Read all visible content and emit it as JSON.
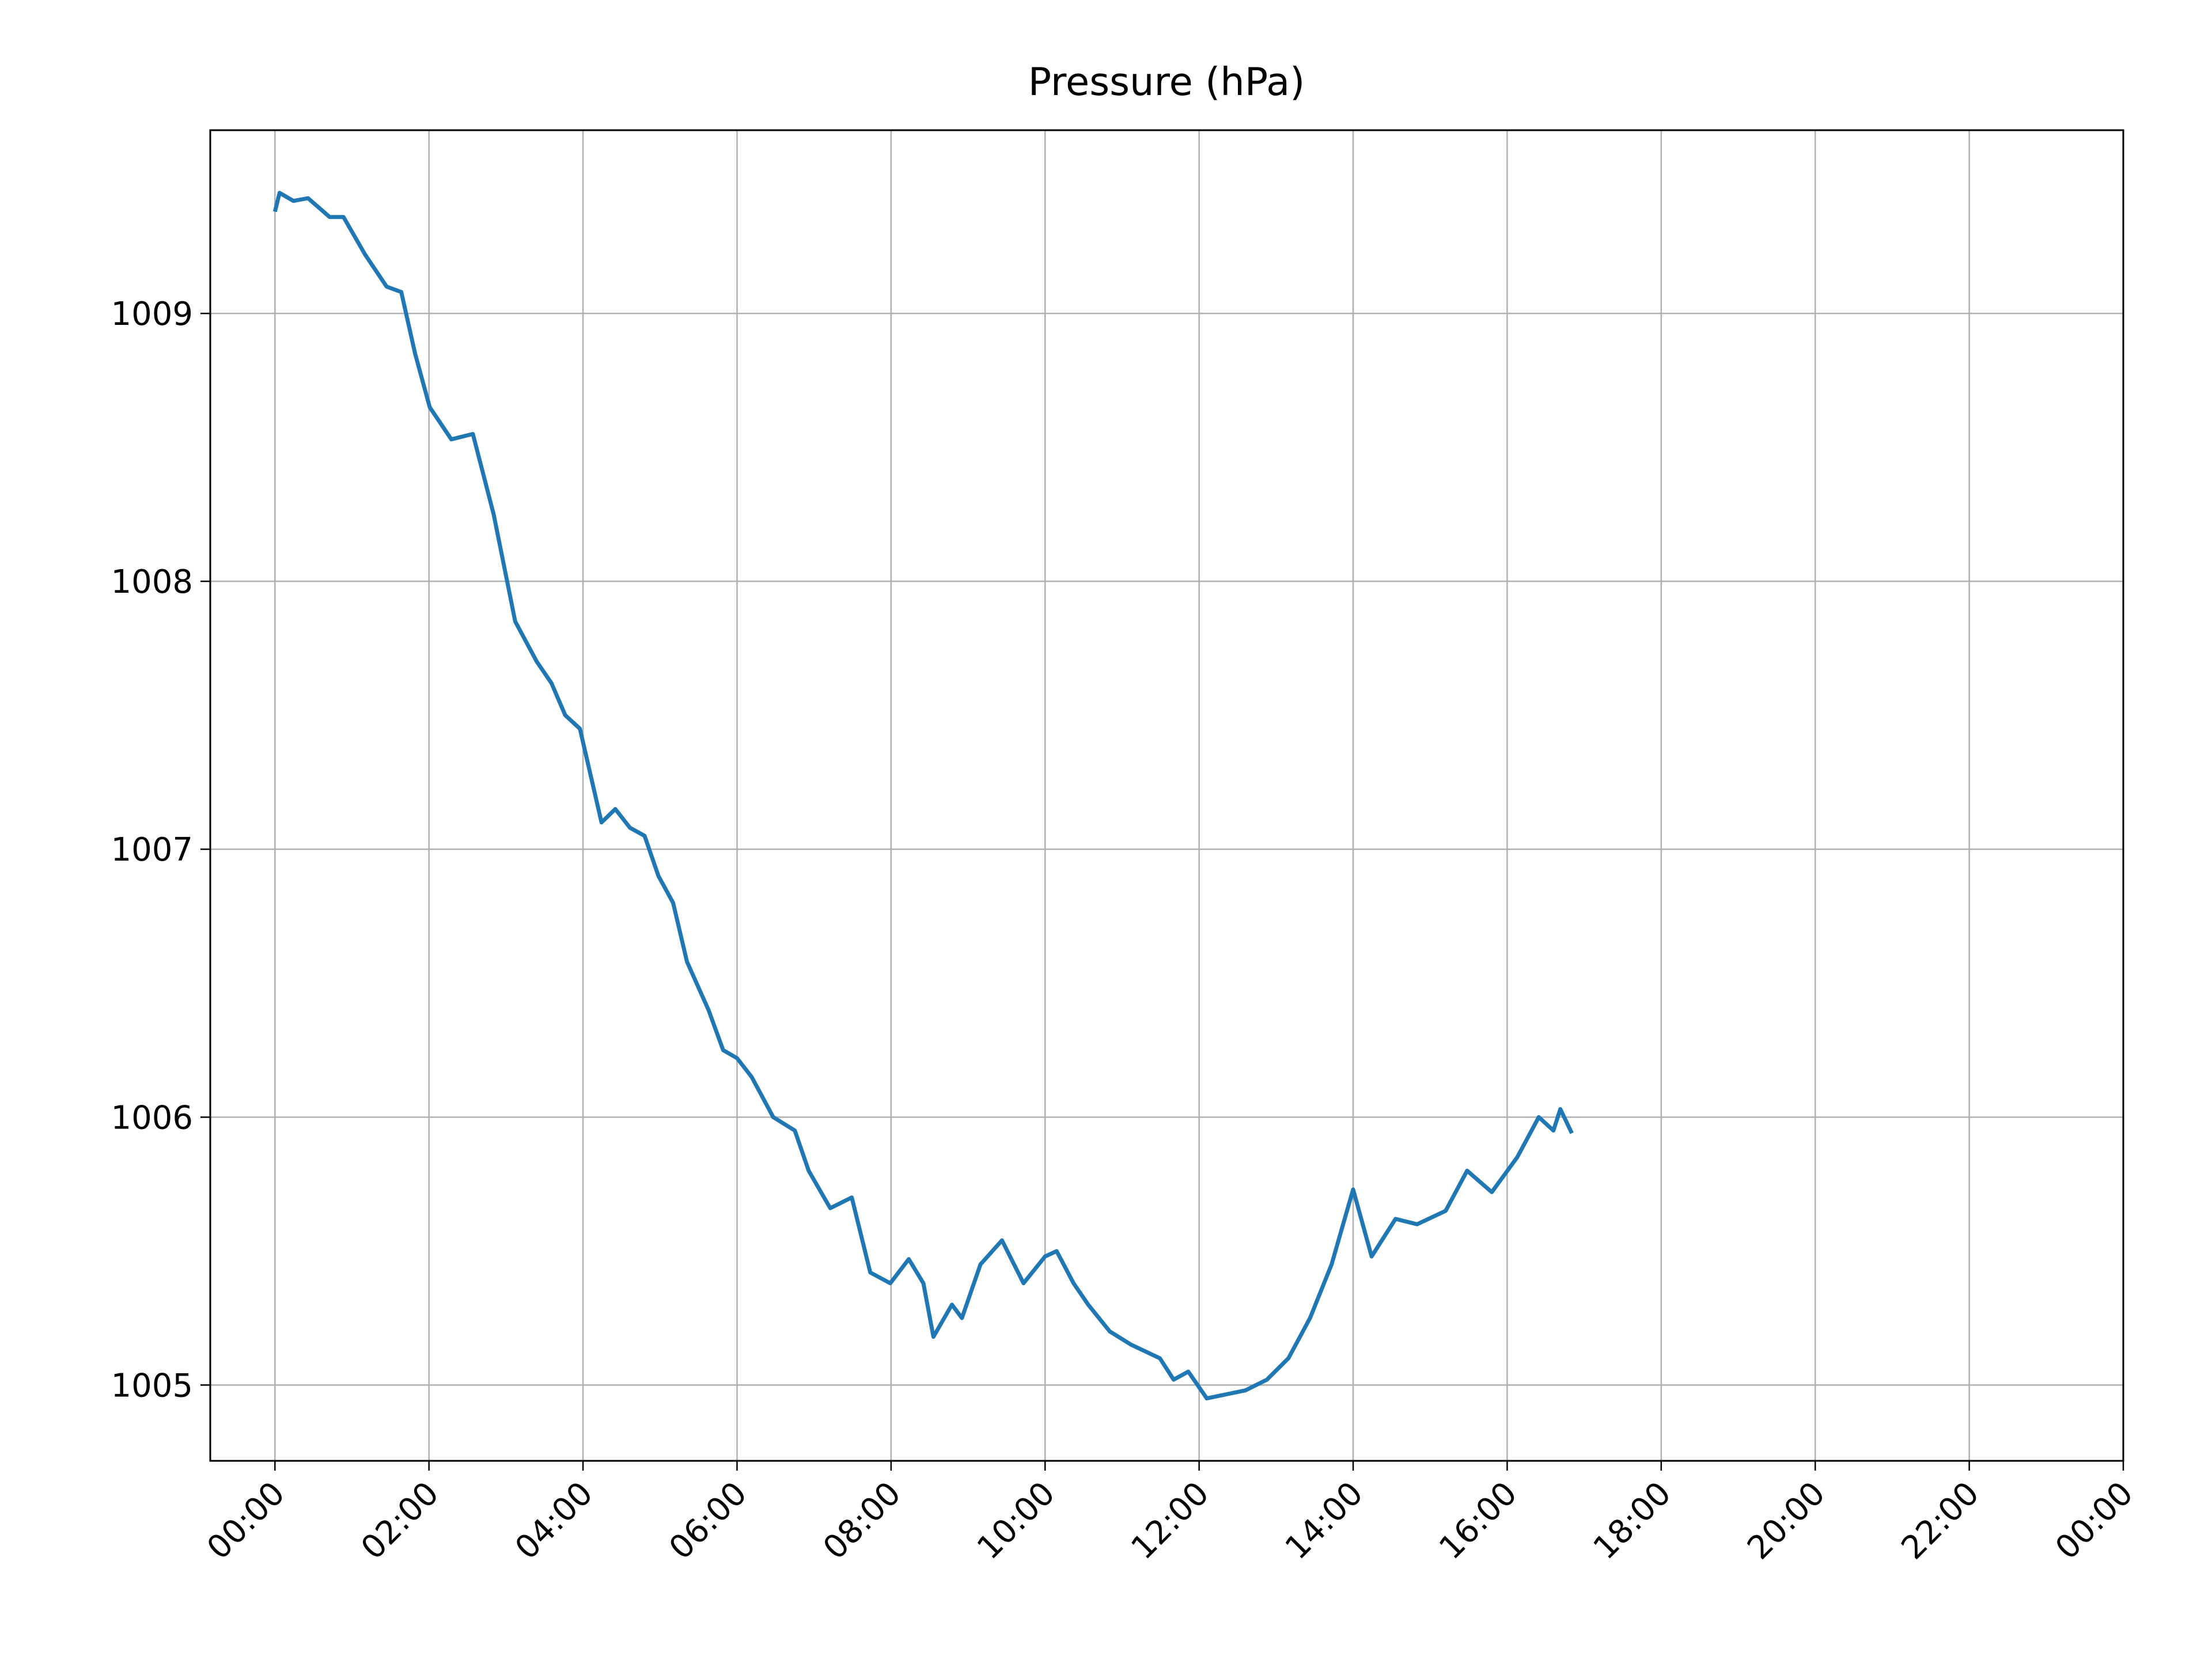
{
  "chart_data": {
    "type": "line",
    "title": "Pressure (hPa)",
    "x": [
      0,
      0.06,
      0.24,
      0.43,
      0.71,
      0.89,
      1.17,
      1.45,
      1.64,
      1.82,
      2.01,
      2.29,
      2.57,
      2.84,
      3.12,
      3.4,
      3.59,
      3.77,
      3.96,
      4.24,
      4.42,
      4.61,
      4.8,
      4.98,
      5.17,
      5.35,
      5.63,
      5.82,
      6.0,
      6.19,
      6.47,
      6.75,
      6.93,
      7.21,
      7.49,
      7.73,
      7.99,
      8.23,
      8.42,
      8.55,
      8.79,
      8.92,
      9.16,
      9.44,
      9.72,
      10.0,
      10.15,
      10.37,
      10.56,
      10.84,
      11.12,
      11.49,
      11.67,
      11.86,
      12.1,
      12.6,
      12.88,
      13.16,
      13.44,
      13.72,
      14.0,
      14.24,
      14.55,
      14.83,
      15.2,
      15.48,
      15.8,
      16.13,
      16.41,
      16.6,
      16.69,
      16.84
    ],
    "series": [
      {
        "name": "Pressure",
        "color": "#1f77b4",
        "values": [
          1009.38,
          1009.45,
          1009.42,
          1009.43,
          1009.36,
          1009.36,
          1009.22,
          1009.1,
          1009.08,
          1008.85,
          1008.65,
          1008.53,
          1008.55,
          1008.25,
          1007.85,
          1007.7,
          1007.62,
          1007.5,
          1007.45,
          1007.1,
          1007.15,
          1007.08,
          1007.05,
          1006.9,
          1006.8,
          1006.58,
          1006.4,
          1006.25,
          1006.22,
          1006.15,
          1006.0,
          1005.95,
          1005.8,
          1005.66,
          1005.7,
          1005.42,
          1005.38,
          1005.47,
          1005.38,
          1005.18,
          1005.3,
          1005.25,
          1005.45,
          1005.54,
          1005.38,
          1005.48,
          1005.5,
          1005.38,
          1005.3,
          1005.2,
          1005.15,
          1005.1,
          1005.02,
          1005.05,
          1004.95,
          1004.98,
          1005.02,
          1005.1,
          1005.25,
          1005.45,
          1005.73,
          1005.48,
          1005.62,
          1005.6,
          1005.65,
          1005.8,
          1005.72,
          1005.85,
          1006.0,
          1005.95,
          1006.03,
          1005.94
        ]
      }
    ],
    "xlim": [
      -0.84,
      24
    ],
    "ylim": [
      1004.717,
      1009.684
    ],
    "xticks": [
      {
        "value": 0,
        "label": "00:00"
      },
      {
        "value": 2,
        "label": "02:00"
      },
      {
        "value": 4,
        "label": "04:00"
      },
      {
        "value": 6,
        "label": "06:00"
      },
      {
        "value": 8,
        "label": "08:00"
      },
      {
        "value": 10,
        "label": "10:00"
      },
      {
        "value": 12,
        "label": "12:00"
      },
      {
        "value": 14,
        "label": "14:00"
      },
      {
        "value": 16,
        "label": "16:00"
      },
      {
        "value": 18,
        "label": "18:00"
      },
      {
        "value": 20,
        "label": "20:00"
      },
      {
        "value": 22,
        "label": "22:00"
      },
      {
        "value": 24,
        "label": "00:00"
      }
    ],
    "yticks": [
      1005,
      1006,
      1007,
      1008,
      1009
    ],
    "grid": true
  }
}
